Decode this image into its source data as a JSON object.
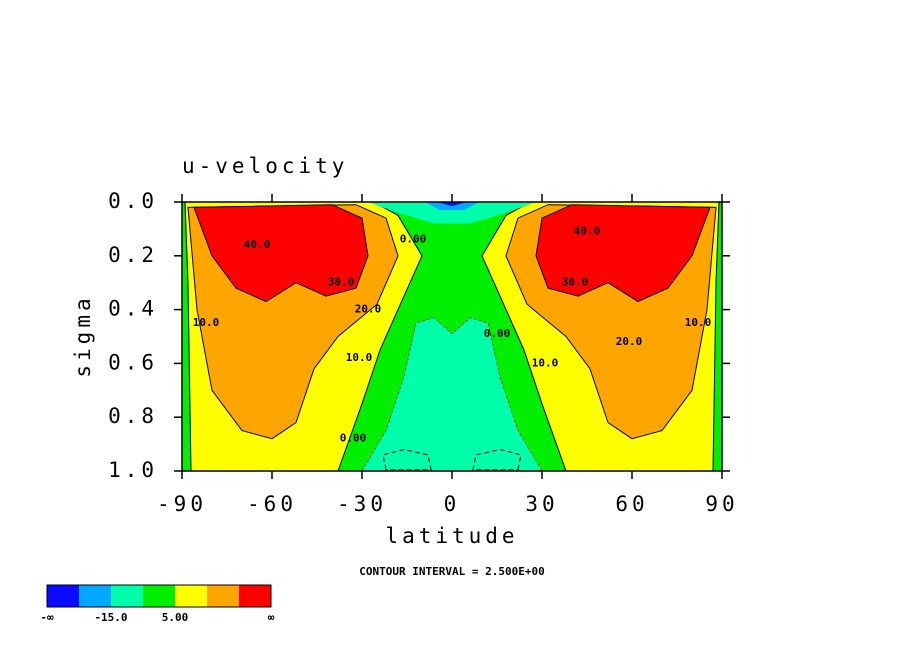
{
  "chart_data": {
    "type": "contour",
    "title": "u-velocity",
    "xlabel": "latitude",
    "ylabel": "sigma",
    "annotation": "CONTOUR INTERVAL = 2.500E+00",
    "xlim": [
      -90,
      90
    ],
    "ylim": [
      1.0,
      0.0
    ],
    "xticks": [
      -90,
      -60,
      -30,
      0,
      30,
      60,
      90
    ],
    "yticks": [
      {
        "value": 0,
        "label": "0.0"
      },
      {
        "value": 0.2,
        "label": "0.2"
      },
      {
        "value": 0.4,
        "label": "0.4"
      },
      {
        "value": 0.6,
        "label": "0.6"
      },
      {
        "value": 0.8,
        "label": "0.8"
      },
      {
        "value": 1.0,
        "label": "1.0"
      }
    ],
    "colors": [
      "#0a0aff",
      "#00a8ff",
      "#00ffaa",
      "#00ee00",
      "#ffff00",
      "#ffa500",
      "#ff0000"
    ],
    "colorbar_labels": [
      "-∞",
      "-15.0",
      "5.00",
      "∞"
    ],
    "contour_labels": [
      {
        "text": "40.0",
        "x": -65,
        "y": 0.16
      },
      {
        "text": "30.0",
        "x": -37,
        "y": 0.3
      },
      {
        "text": "20.0",
        "x": -28,
        "y": 0.4
      },
      {
        "text": "10.0",
        "x": -31,
        "y": 0.58
      },
      {
        "text": "10.0",
        "x": -82,
        "y": 0.45
      },
      {
        "text": "0.00",
        "x": -33,
        "y": 0.88
      },
      {
        "text": "0.00",
        "x": -13,
        "y": 0.14
      },
      {
        "text": "40.0",
        "x": 45,
        "y": 0.11
      },
      {
        "text": "30.0",
        "x": 41,
        "y": 0.3
      },
      {
        "text": "20.0",
        "x": 59,
        "y": 0.52
      },
      {
        "text": "10.0",
        "x": 31,
        "y": 0.6
      },
      {
        "text": "10.0",
        "x": 82,
        "y": 0.45
      },
      {
        "text": "0.00",
        "x": 15,
        "y": 0.49
      }
    ]
  }
}
